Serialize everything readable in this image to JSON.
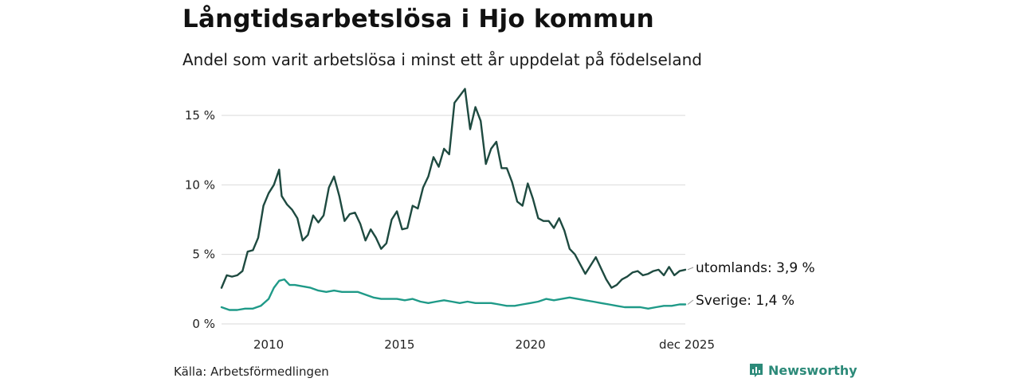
{
  "header": {
    "title": "Långtidsarbetslösa i Hjo kommun",
    "subtitle": "Andel som varit arbetslösa i minst ett år uppdelat på födelseland"
  },
  "footer": {
    "source": "Källa: Arbetsförmedlingen",
    "brand": "Newsworthy"
  },
  "colors": {
    "utomlands": "#1e4a40",
    "sverige": "#1f9a88",
    "grid": "#d9d9d9",
    "brand": "#2c8a79"
  },
  "icons": {
    "brand_logo": "newsworthy-chart-icon"
  },
  "chart_data": {
    "type": "line",
    "title": "Långtidsarbetslösa i Hjo kommun",
    "subtitle": "Andel som varit arbetslösa i minst ett år uppdelat på födelseland",
    "xlabel": "",
    "ylabel": "",
    "x_range": [
      2008.2,
      2025.92
    ],
    "ylim": [
      0,
      17
    ],
    "y_ticks": [
      {
        "value": 0,
        "label": "0 %"
      },
      {
        "value": 5,
        "label": "5 %"
      },
      {
        "value": 10,
        "label": "10 %"
      },
      {
        "value": 15,
        "label": "15 %"
      }
    ],
    "x_ticks": [
      {
        "value": 2010,
        "label": "2010"
      },
      {
        "value": 2015,
        "label": "2015"
      },
      {
        "value": 2020,
        "label": "2020"
      },
      {
        "value": 2025.92,
        "label": "dec 2025"
      }
    ],
    "grid": true,
    "legend": "end-labels",
    "series": [
      {
        "name": "utomlands",
        "end_label": "utomlands: 3,9 %",
        "x": [
          2008.2,
          2008.4,
          2008.6,
          2008.8,
          2009.0,
          2009.2,
          2009.4,
          2009.6,
          2009.8,
          2010.0,
          2010.2,
          2010.4,
          2010.5,
          2010.7,
          2010.9,
          2011.1,
          2011.3,
          2011.5,
          2011.7,
          2011.9,
          2012.1,
          2012.3,
          2012.5,
          2012.7,
          2012.9,
          2013.1,
          2013.3,
          2013.5,
          2013.7,
          2013.9,
          2014.1,
          2014.3,
          2014.5,
          2014.7,
          2014.9,
          2015.1,
          2015.3,
          2015.5,
          2015.7,
          2015.9,
          2016.1,
          2016.3,
          2016.5,
          2016.7,
          2016.9,
          2017.1,
          2017.3,
          2017.5,
          2017.7,
          2017.9,
          2018.1,
          2018.3,
          2018.5,
          2018.7,
          2018.9,
          2019.1,
          2019.3,
          2019.5,
          2019.7,
          2019.9,
          2020.1,
          2020.3,
          2020.5,
          2020.7,
          2020.9,
          2021.1,
          2021.3,
          2021.5,
          2021.7,
          2021.9,
          2022.1,
          2022.3,
          2022.5,
          2022.7,
          2022.9,
          2023.1,
          2023.3,
          2023.5,
          2023.7,
          2023.9,
          2024.1,
          2024.3,
          2024.5,
          2024.7,
          2024.9,
          2025.1,
          2025.3,
          2025.5,
          2025.7,
          2025.92
        ],
        "values": [
          2.6,
          3.5,
          3.4,
          3.5,
          3.8,
          5.2,
          5.3,
          6.2,
          8.5,
          9.4,
          10.0,
          11.1,
          9.2,
          8.6,
          8.2,
          7.6,
          6.0,
          6.4,
          7.8,
          7.3,
          7.8,
          9.8,
          10.6,
          9.2,
          7.4,
          7.9,
          8.0,
          7.2,
          6.0,
          6.8,
          6.2,
          5.4,
          5.8,
          7.5,
          8.1,
          6.8,
          6.9,
          8.5,
          8.3,
          9.8,
          10.6,
          12.0,
          11.3,
          12.6,
          12.2,
          15.9,
          16.4,
          16.9,
          14.0,
          15.6,
          14.6,
          11.5,
          12.6,
          13.1,
          11.2,
          11.2,
          10.2,
          8.8,
          8.5,
          10.1,
          9.0,
          7.6,
          7.4,
          7.4,
          6.9,
          7.6,
          6.7,
          5.4,
          5.0,
          4.3,
          3.6,
          4.2,
          4.8,
          4.0,
          3.2,
          2.6,
          2.8,
          3.2,
          3.4,
          3.7,
          3.8,
          3.5,
          3.6,
          3.8,
          3.9,
          3.5,
          4.1,
          3.5,
          3.8,
          3.9
        ]
      },
      {
        "name": "Sverige",
        "end_label": "Sverige: 1,4 %",
        "x": [
          2008.2,
          2008.5,
          2008.8,
          2009.1,
          2009.4,
          2009.7,
          2010.0,
          2010.2,
          2010.4,
          2010.6,
          2010.8,
          2011.0,
          2011.3,
          2011.6,
          2011.9,
          2012.2,
          2012.5,
          2012.8,
          2013.1,
          2013.4,
          2013.7,
          2014.0,
          2014.3,
          2014.6,
          2014.9,
          2015.2,
          2015.5,
          2015.8,
          2016.1,
          2016.4,
          2016.7,
          2017.0,
          2017.3,
          2017.6,
          2017.9,
          2018.2,
          2018.5,
          2018.8,
          2019.1,
          2019.4,
          2019.7,
          2020.0,
          2020.3,
          2020.6,
          2020.9,
          2021.2,
          2021.5,
          2021.8,
          2022.1,
          2022.4,
          2022.7,
          2023.0,
          2023.3,
          2023.6,
          2023.9,
          2024.2,
          2024.5,
          2024.8,
          2025.1,
          2025.4,
          2025.7,
          2025.92
        ],
        "values": [
          1.2,
          1.0,
          1.0,
          1.1,
          1.1,
          1.3,
          1.8,
          2.6,
          3.1,
          3.2,
          2.8,
          2.8,
          2.7,
          2.6,
          2.4,
          2.3,
          2.4,
          2.3,
          2.3,
          2.3,
          2.1,
          1.9,
          1.8,
          1.8,
          1.8,
          1.7,
          1.8,
          1.6,
          1.5,
          1.6,
          1.7,
          1.6,
          1.5,
          1.6,
          1.5,
          1.5,
          1.5,
          1.4,
          1.3,
          1.3,
          1.4,
          1.5,
          1.6,
          1.8,
          1.7,
          1.8,
          1.9,
          1.8,
          1.7,
          1.6,
          1.5,
          1.4,
          1.3,
          1.2,
          1.2,
          1.2,
          1.1,
          1.2,
          1.3,
          1.3,
          1.4,
          1.4
        ]
      }
    ]
  }
}
